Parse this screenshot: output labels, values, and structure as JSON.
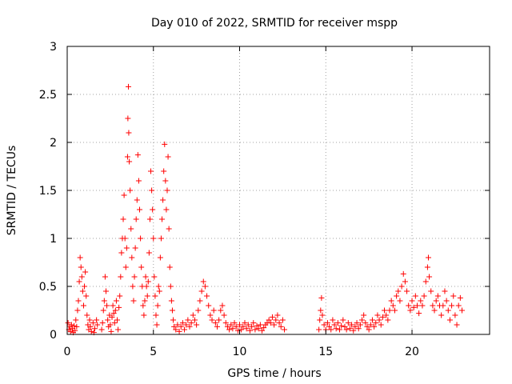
{
  "chart_data": {
    "type": "scatter",
    "title": "Day 010 of 2022, SRMTID for receiver mspp",
    "xlabel": "GPS time / hours",
    "ylabel": "SRMTID / TECUs",
    "xlim": [
      0,
      24.5
    ],
    "ylim": [
      0,
      3
    ],
    "xticks": [
      0,
      5,
      10,
      15,
      20
    ],
    "xtick_labels": [
      "0",
      "5",
      "10",
      "15",
      "20"
    ],
    "yticks": [
      0,
      0.5,
      1,
      1.5,
      2,
      2.5,
      3
    ],
    "ytick_labels": [
      "0",
      "0.5",
      "1",
      "1.5",
      "2",
      "2.5",
      "3"
    ],
    "grid": true,
    "marker": "+",
    "color": "#ff0000",
    "series": [
      {
        "name": "SRMTID",
        "points": [
          [
            0.05,
            0.12
          ],
          [
            0.1,
            0.05
          ],
          [
            0.15,
            0.08
          ],
          [
            0.2,
            0.03
          ],
          [
            0.25,
            0.1
          ],
          [
            0.3,
            0.06
          ],
          [
            0.35,
            0.02
          ],
          [
            0.4,
            0.09
          ],
          [
            0.45,
            0.04
          ],
          [
            0.5,
            0.15
          ],
          [
            0.55,
            0.08
          ],
          [
            0.6,
            0.25
          ],
          [
            0.65,
            0.35
          ],
          [
            0.7,
            0.55
          ],
          [
            0.75,
            0.8
          ],
          [
            0.8,
            0.7
          ],
          [
            0.85,
            0.6
          ],
          [
            0.9,
            0.45
          ],
          [
            0.95,
            0.3
          ],
          [
            1.0,
            0.5
          ],
          [
            1.05,
            0.65
          ],
          [
            1.1,
            0.4
          ],
          [
            1.15,
            0.2
          ],
          [
            1.2,
            0.1
          ],
          [
            1.25,
            0.05
          ],
          [
            1.3,
            0.15
          ],
          [
            1.35,
            0.08
          ],
          [
            1.4,
            0.03
          ],
          [
            1.5,
            0.12
          ],
          [
            1.55,
            0.02
          ],
          [
            1.6,
            0.06
          ],
          [
            1.7,
            0.15
          ],
          [
            1.75,
            0.1
          ],
          [
            2.0,
            0.05
          ],
          [
            2.05,
            0.12
          ],
          [
            2.1,
            0.25
          ],
          [
            2.15,
            0.35
          ],
          [
            2.2,
            0.6
          ],
          [
            2.25,
            0.45
          ],
          [
            2.3,
            0.3
          ],
          [
            2.35,
            0.15
          ],
          [
            2.4,
            0.08
          ],
          [
            2.45,
            0.2
          ],
          [
            2.5,
            0.1
          ],
          [
            2.55,
            0.03
          ],
          [
            2.6,
            0.18
          ],
          [
            2.65,
            0.3
          ],
          [
            2.7,
            0.22
          ],
          [
            2.75,
            0.12
          ],
          [
            2.8,
            0.25
          ],
          [
            2.85,
            0.35
          ],
          [
            2.9,
            0.15
          ],
          [
            2.95,
            0.05
          ],
          [
            3.0,
            0.28
          ],
          [
            3.05,
            0.4
          ],
          [
            3.1,
            0.6
          ],
          [
            3.15,
            0.85
          ],
          [
            3.2,
            1.0
          ],
          [
            3.25,
            1.2
          ],
          [
            3.3,
            1.45
          ],
          [
            3.35,
            1.0
          ],
          [
            3.4,
            0.7
          ],
          [
            3.45,
            0.9
          ],
          [
            3.5,
            1.85
          ],
          [
            3.52,
            2.25
          ],
          [
            3.55,
            2.58
          ],
          [
            3.57,
            2.1
          ],
          [
            3.6,
            1.8
          ],
          [
            3.65,
            1.5
          ],
          [
            3.7,
            1.1
          ],
          [
            3.75,
            0.8
          ],
          [
            3.8,
            0.5
          ],
          [
            3.85,
            0.35
          ],
          [
            3.9,
            0.6
          ],
          [
            3.95,
            0.9
          ],
          [
            4.0,
            1.2
          ],
          [
            4.05,
            1.4
          ],
          [
            4.1,
            1.87
          ],
          [
            4.15,
            1.6
          ],
          [
            4.2,
            1.3
          ],
          [
            4.25,
            1.0
          ],
          [
            4.3,
            0.7
          ],
          [
            4.35,
            0.5
          ],
          [
            4.4,
            0.3
          ],
          [
            4.45,
            0.2
          ],
          [
            4.5,
            0.35
          ],
          [
            4.55,
            0.6
          ],
          [
            4.6,
            0.5
          ],
          [
            4.65,
            0.4
          ],
          [
            4.7,
            0.55
          ],
          [
            4.75,
            0.85
          ],
          [
            4.8,
            1.2
          ],
          [
            4.85,
            1.7
          ],
          [
            4.9,
            1.5
          ],
          [
            4.95,
            1.3
          ],
          [
            5.0,
            1.0
          ],
          [
            5.05,
            0.6
          ],
          [
            5.1,
            0.4
          ],
          [
            5.15,
            0.2
          ],
          [
            5.2,
            0.1
          ],
          [
            5.25,
            0.3
          ],
          [
            5.3,
            0.5
          ],
          [
            5.35,
            0.45
          ],
          [
            5.4,
            0.8
          ],
          [
            5.45,
            1.0
          ],
          [
            5.5,
            1.2
          ],
          [
            5.55,
            1.4
          ],
          [
            5.6,
            1.7
          ],
          [
            5.65,
            1.98
          ],
          [
            5.7,
            1.6
          ],
          [
            5.75,
            1.3
          ],
          [
            5.8,
            1.5
          ],
          [
            5.85,
            1.85
          ],
          [
            5.9,
            1.1
          ],
          [
            5.95,
            0.7
          ],
          [
            6.0,
            0.5
          ],
          [
            6.05,
            0.35
          ],
          [
            6.1,
            0.25
          ],
          [
            6.15,
            0.15
          ],
          [
            6.2,
            0.08
          ],
          [
            6.3,
            0.05
          ],
          [
            6.4,
            0.1
          ],
          [
            6.5,
            0.03
          ],
          [
            6.6,
            0.08
          ],
          [
            6.7,
            0.12
          ],
          [
            6.8,
            0.05
          ],
          [
            6.9,
            0.1
          ],
          [
            7.0,
            0.15
          ],
          [
            7.1,
            0.08
          ],
          [
            7.2,
            0.12
          ],
          [
            7.3,
            0.2
          ],
          [
            7.4,
            0.15
          ],
          [
            7.5,
            0.1
          ],
          [
            7.6,
            0.25
          ],
          [
            7.7,
            0.35
          ],
          [
            7.8,
            0.45
          ],
          [
            7.9,
            0.55
          ],
          [
            8.0,
            0.5
          ],
          [
            8.1,
            0.4
          ],
          [
            8.2,
            0.3
          ],
          [
            8.3,
            0.2
          ],
          [
            8.4,
            0.15
          ],
          [
            8.5,
            0.25
          ],
          [
            8.6,
            0.12
          ],
          [
            8.7,
            0.08
          ],
          [
            8.8,
            0.15
          ],
          [
            8.9,
            0.25
          ],
          [
            9.0,
            0.3
          ],
          [
            9.1,
            0.2
          ],
          [
            9.2,
            0.12
          ],
          [
            9.3,
            0.08
          ],
          [
            9.4,
            0.05
          ],
          [
            9.5,
            0.1
          ],
          [
            9.6,
            0.06
          ],
          [
            9.7,
            0.12
          ],
          [
            9.8,
            0.08
          ],
          [
            9.9,
            0.04
          ],
          [
            10.0,
            0.1
          ],
          [
            10.1,
            0.05
          ],
          [
            10.2,
            0.08
          ],
          [
            10.3,
            0.12
          ],
          [
            10.4,
            0.06
          ],
          [
            10.5,
            0.1
          ],
          [
            10.6,
            0.04
          ],
          [
            10.7,
            0.08
          ],
          [
            10.8,
            0.12
          ],
          [
            10.9,
            0.05
          ],
          [
            11.0,
            0.09
          ],
          [
            11.1,
            0.06
          ],
          [
            11.2,
            0.1
          ],
          [
            11.3,
            0.04
          ],
          [
            11.4,
            0.07
          ],
          [
            11.5,
            0.1
          ],
          [
            11.6,
            0.12
          ],
          [
            11.7,
            0.15
          ],
          [
            11.8,
            0.12
          ],
          [
            11.9,
            0.18
          ],
          [
            12.0,
            0.1
          ],
          [
            12.1,
            0.15
          ],
          [
            12.2,
            0.2
          ],
          [
            12.3,
            0.12
          ],
          [
            12.4,
            0.08
          ],
          [
            12.5,
            0.15
          ],
          [
            12.6,
            0.05
          ],
          [
            14.6,
            0.05
          ],
          [
            14.65,
            0.15
          ],
          [
            14.7,
            0.25
          ],
          [
            14.75,
            0.38
          ],
          [
            14.8,
            0.2
          ],
          [
            14.9,
            0.1
          ],
          [
            15.0,
            0.05
          ],
          [
            15.1,
            0.12
          ],
          [
            15.2,
            0.08
          ],
          [
            15.3,
            0.05
          ],
          [
            15.4,
            0.15
          ],
          [
            15.5,
            0.1
          ],
          [
            15.6,
            0.06
          ],
          [
            15.7,
            0.12
          ],
          [
            15.8,
            0.05
          ],
          [
            15.9,
            0.09
          ],
          [
            16.0,
            0.15
          ],
          [
            16.1,
            0.08
          ],
          [
            16.2,
            0.05
          ],
          [
            16.3,
            0.12
          ],
          [
            16.4,
            0.06
          ],
          [
            16.5,
            0.1
          ],
          [
            16.6,
            0.04
          ],
          [
            16.7,
            0.08
          ],
          [
            16.8,
            0.12
          ],
          [
            16.9,
            0.06
          ],
          [
            17.0,
            0.1
          ],
          [
            17.1,
            0.15
          ],
          [
            17.2,
            0.2
          ],
          [
            17.3,
            0.12
          ],
          [
            17.4,
            0.08
          ],
          [
            17.5,
            0.05
          ],
          [
            17.6,
            0.1
          ],
          [
            17.7,
            0.15
          ],
          [
            17.8,
            0.08
          ],
          [
            17.9,
            0.12
          ],
          [
            18.0,
            0.2
          ],
          [
            18.1,
            0.15
          ],
          [
            18.2,
            0.1
          ],
          [
            18.3,
            0.18
          ],
          [
            18.4,
            0.25
          ],
          [
            18.5,
            0.2
          ],
          [
            18.6,
            0.15
          ],
          [
            18.7,
            0.25
          ],
          [
            18.8,
            0.35
          ],
          [
            18.9,
            0.3
          ],
          [
            19.0,
            0.25
          ],
          [
            19.1,
            0.4
          ],
          [
            19.2,
            0.45
          ],
          [
            19.3,
            0.35
          ],
          [
            19.4,
            0.5
          ],
          [
            19.5,
            0.63
          ],
          [
            19.6,
            0.55
          ],
          [
            19.7,
            0.45
          ],
          [
            19.8,
            0.3
          ],
          [
            19.9,
            0.25
          ],
          [
            20.0,
            0.35
          ],
          [
            20.1,
            0.28
          ],
          [
            20.2,
            0.4
          ],
          [
            20.3,
            0.3
          ],
          [
            20.4,
            0.22
          ],
          [
            20.5,
            0.35
          ],
          [
            20.6,
            0.3
          ],
          [
            20.7,
            0.4
          ],
          [
            20.8,
            0.55
          ],
          [
            20.9,
            0.7
          ],
          [
            20.95,
            0.8
          ],
          [
            21.0,
            0.6
          ],
          [
            21.1,
            0.45
          ],
          [
            21.2,
            0.3
          ],
          [
            21.3,
            0.25
          ],
          [
            21.4,
            0.35
          ],
          [
            21.5,
            0.4
          ],
          [
            21.6,
            0.3
          ],
          [
            21.7,
            0.2
          ],
          [
            21.8,
            0.3
          ],
          [
            21.9,
            0.45
          ],
          [
            22.0,
            0.35
          ],
          [
            22.1,
            0.25
          ],
          [
            22.2,
            0.15
          ],
          [
            22.3,
            0.3
          ],
          [
            22.4,
            0.4
          ],
          [
            22.5,
            0.2
          ],
          [
            22.6,
            0.1
          ],
          [
            22.7,
            0.3
          ],
          [
            22.8,
            0.38
          ],
          [
            22.9,
            0.25
          ]
        ]
      }
    ]
  }
}
